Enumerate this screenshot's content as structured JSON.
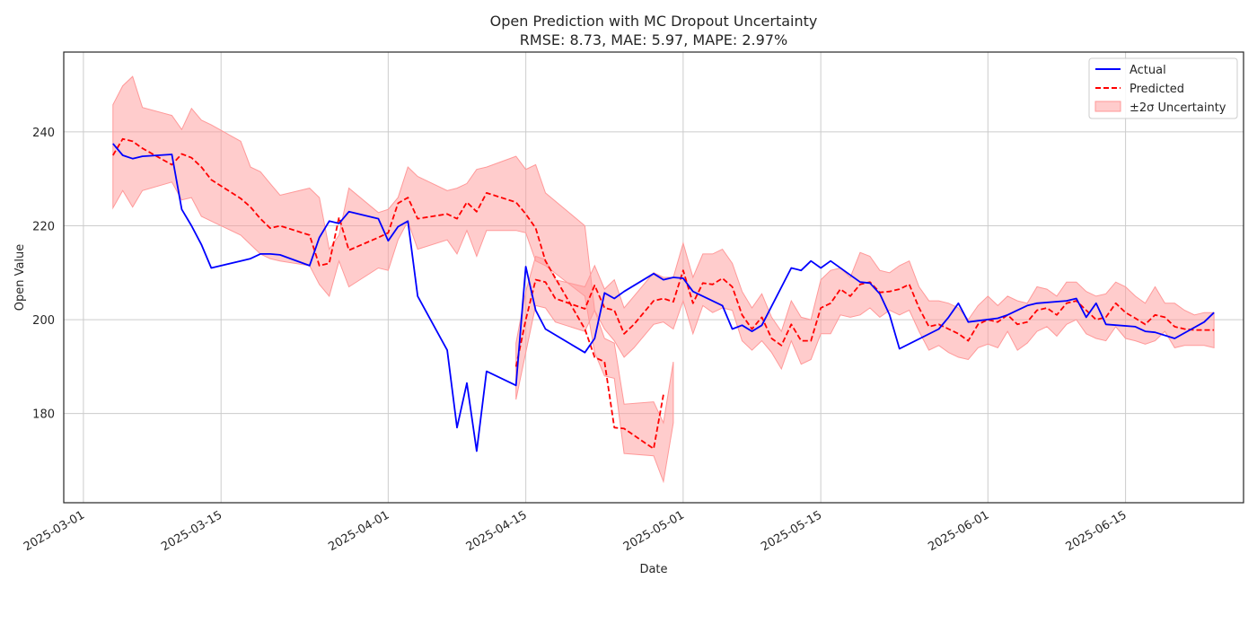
{
  "chart_data": {
    "type": "line",
    "title": "Open Prediction with MC Dropout Uncertainty",
    "subtitle": "RMSE: 8.73, MAE: 5.97, MAPE: 2.97%",
    "xlabel": "Date",
    "ylabel": "Open Value",
    "x_axis_type": "date",
    "xlim": [
      "2025-02-27",
      "2025-06-27"
    ],
    "ylim": [
      161,
      257
    ],
    "x_ticks": [
      "2025-03-01",
      "2025-03-15",
      "2025-04-01",
      "2025-04-15",
      "2025-05-01",
      "2025-05-15",
      "2025-06-01",
      "2025-06-15"
    ],
    "y_ticks": [
      180,
      200,
      220,
      240
    ],
    "grid": true,
    "legend_position": "top-right",
    "colors": {
      "actual": "#0000ff",
      "predicted": "#ff0000",
      "band": "#ff9999"
    },
    "series": [
      {
        "name": "Actual",
        "style": "solid",
        "points": [
          [
            "2025-03-04",
            237.5
          ],
          [
            "2025-03-05",
            235.0
          ],
          [
            "2025-03-06",
            234.3
          ],
          [
            "2025-03-07",
            234.8
          ],
          [
            "2025-03-10",
            235.2
          ],
          [
            "2025-03-11",
            223.5
          ],
          [
            "2025-03-12",
            220.0
          ],
          [
            "2025-03-13",
            216.0
          ],
          [
            "2025-03-14",
            211.0
          ],
          [
            "2025-03-17",
            212.5
          ],
          [
            "2025-03-18",
            213.0
          ],
          [
            "2025-03-19",
            214.0
          ],
          [
            "2025-03-20",
            214.0
          ],
          [
            "2025-03-21",
            213.8
          ],
          [
            "2025-03-24",
            211.5
          ],
          [
            "2025-03-25",
            217.5
          ],
          [
            "2025-03-26",
            221.0
          ],
          [
            "2025-03-27",
            220.5
          ],
          [
            "2025-03-28",
            223.0
          ],
          [
            "2025-03-31",
            221.5
          ],
          [
            "2025-04-01",
            216.8
          ],
          [
            "2025-04-02",
            219.8
          ],
          [
            "2025-04-03",
            221.0
          ],
          [
            "2025-04-04",
            205.0
          ],
          [
            "2025-04-07",
            193.5
          ],
          [
            "2025-04-08",
            177.0
          ],
          [
            "2025-04-09",
            186.5
          ],
          [
            "2025-04-10",
            172.0
          ],
          [
            "2025-04-11",
            189.0
          ],
          [
            "2025-04-14",
            186.0
          ],
          [
            "2025-04-15",
            211.3
          ],
          [
            "2025-04-16",
            202.0
          ],
          [
            "2025-04-17",
            198.0
          ],
          [
            "2025-04-21",
            193.0
          ],
          [
            "2025-04-22",
            196.0
          ],
          [
            "2025-04-23",
            205.7
          ],
          [
            "2025-04-24",
            204.5
          ],
          [
            "2025-04-25",
            206.0
          ],
          [
            "2025-04-28",
            209.8
          ],
          [
            "2025-04-29",
            208.5
          ],
          [
            "2025-04-30",
            209.0
          ],
          [
            "2025-05-01",
            208.8
          ],
          [
            "2025-05-02",
            206.0
          ],
          [
            "2025-05-05",
            203.0
          ],
          [
            "2025-05-06",
            198.0
          ],
          [
            "2025-05-07",
            198.8
          ],
          [
            "2025-05-08",
            197.5
          ],
          [
            "2025-05-09",
            198.8
          ],
          [
            "2025-05-12",
            211.0
          ],
          [
            "2025-05-13",
            210.5
          ],
          [
            "2025-05-14",
            212.5
          ],
          [
            "2025-05-15",
            211.0
          ],
          [
            "2025-05-16",
            212.5
          ],
          [
            "2025-05-19",
            208.0
          ],
          [
            "2025-05-20",
            207.8
          ],
          [
            "2025-05-21",
            205.5
          ],
          [
            "2025-05-22",
            201.0
          ],
          [
            "2025-05-23",
            193.8
          ],
          [
            "2025-05-27",
            198.0
          ],
          [
            "2025-05-28",
            200.5
          ],
          [
            "2025-05-29",
            203.5
          ],
          [
            "2025-05-30",
            199.5
          ],
          [
            "2025-06-02",
            200.3
          ],
          [
            "2025-06-03",
            201.0
          ],
          [
            "2025-06-04",
            202.0
          ],
          [
            "2025-06-05",
            203.0
          ],
          [
            "2025-06-06",
            203.5
          ],
          [
            "2025-06-09",
            204.0
          ],
          [
            "2025-06-10",
            204.5
          ],
          [
            "2025-06-11",
            200.5
          ],
          [
            "2025-06-12",
            203.5
          ],
          [
            "2025-06-13",
            199.0
          ],
          [
            "2025-06-16",
            198.5
          ],
          [
            "2025-06-17",
            197.5
          ],
          [
            "2025-06-18",
            197.3
          ],
          [
            "2025-06-20",
            196.0
          ],
          [
            "2025-06-23",
            199.5
          ],
          [
            "2025-06-24",
            201.5
          ]
        ]
      },
      {
        "name": "Predicted",
        "style": "dashed",
        "points": [
          [
            "2025-03-04",
            235.0
          ],
          [
            "2025-03-05",
            238.5
          ],
          [
            "2025-03-06",
            238.0
          ],
          [
            "2025-03-07",
            236.5
          ],
          [
            "2025-03-10",
            233.0
          ],
          [
            "2025-03-11",
            235.3
          ],
          [
            "2025-03-12",
            234.5
          ],
          [
            "2025-03-13",
            232.5
          ],
          [
            "2025-03-14",
            229.8
          ],
          [
            "2025-03-17",
            225.8
          ],
          [
            "2025-03-18",
            224.0
          ],
          [
            "2025-03-19",
            221.5
          ],
          [
            "2025-03-20",
            219.5
          ],
          [
            "2025-03-21",
            220.0
          ],
          [
            "2025-03-24",
            218.0
          ],
          [
            "2025-03-25",
            211.5
          ],
          [
            "2025-03-26",
            212.0
          ],
          [
            "2025-03-27",
            221.8
          ],
          [
            "2025-03-28",
            214.8
          ],
          [
            "2025-03-31",
            217.5
          ],
          [
            "2025-04-01",
            218.5
          ],
          [
            "2025-04-02",
            224.8
          ],
          [
            "2025-04-03",
            226.0
          ],
          [
            "2025-04-04",
            221.5
          ],
          [
            "2025-04-07",
            222.5
          ],
          [
            "2025-04-08",
            221.5
          ],
          [
            "2025-04-09",
            225.0
          ],
          [
            "2025-04-10",
            223.0
          ],
          [
            "2025-04-11",
            227.0
          ],
          [
            "2025-04-14",
            225.0
          ],
          [
            "2025-04-15",
            222.5
          ],
          [
            "2025-04-16",
            219.5
          ],
          [
            "2025-04-17",
            212.5
          ],
          [
            "2025-04-21",
            198.0
          ],
          [
            "2025-04-22",
            192.0
          ],
          [
            "2025-04-23",
            191.0
          ],
          [
            "2025-04-24",
            177.0
          ],
          [
            "2025-04-25",
            176.8
          ],
          [
            "2025-04-28",
            172.5
          ],
          [
            "2025-04-29",
            184.0
          ]
        ]
      },
      {
        "name": "±2σ Uncertainty",
        "style": "band",
        "upper": [
          245.8,
          249.8,
          251.8,
          245.2,
          243.5,
          240.5,
          245.0,
          242.5,
          241.5,
          238.0,
          232.5,
          231.5,
          229.0,
          226.5,
          228.0,
          226.0,
          215.0,
          218.0,
          228.0,
          222.8,
          223.5,
          226.0,
          232.5,
          230.5,
          227.5,
          228.0,
          229.0,
          232.0,
          232.5,
          234.8,
          232.0,
          233.0,
          227.0,
          220.0,
          202.0,
          196.0,
          195.0,
          182.0,
          182.5,
          178.0,
          191.0
        ],
        "lower": [
          223.8,
          227.5,
          224.0,
          227.5,
          229.3,
          225.5,
          226.0,
          222.0,
          221.0,
          218.0,
          216.0,
          214.0,
          213.0,
          212.5,
          211.5,
          207.5,
          205.0,
          212.5,
          207.0,
          211.0,
          210.5,
          217.0,
          221.0,
          215.0,
          217.0,
          214.0,
          219.0,
          213.5,
          219.0,
          219.0,
          218.5,
          212.5,
          211.5,
          205.0,
          193.0,
          188.0,
          187.5,
          171.5,
          171.0,
          165.5,
          178.0
        ]
      }
    ],
    "band_dates": [
      "2025-03-04",
      "2025-03-05",
      "2025-03-06",
      "2025-03-07",
      "2025-03-10",
      "2025-03-11",
      "2025-03-12",
      "2025-03-13",
      "2025-03-14",
      "2025-03-17",
      "2025-03-18",
      "2025-03-19",
      "2025-03-20",
      "2025-03-21",
      "2025-03-24",
      "2025-03-25",
      "2025-03-26",
      "2025-03-27",
      "2025-03-28",
      "2025-03-31",
      "2025-04-01",
      "2025-04-02",
      "2025-04-03",
      "2025-04-04",
      "2025-04-07",
      "2025-04-08",
      "2025-04-09",
      "2025-04-10",
      "2025-04-11",
      "2025-04-14",
      "2025-04-15",
      "2025-04-16",
      "2025-04-17",
      "2025-04-21",
      "2025-04-22",
      "2025-04-23",
      "2025-04-24",
      "2025-04-25",
      "2025-04-28",
      "2025-04-29",
      "2025-04-30"
    ],
    "predicted_tail": {
      "points": [
        [
          "2025-04-14",
          190.0
        ],
        [
          "2025-04-15",
          200.0
        ],
        [
          "2025-04-16",
          208.5
        ],
        [
          "2025-04-17",
          208.0
        ],
        [
          "2025-04-18",
          204.5
        ],
        [
          "2025-04-21",
          202.3
        ],
        [
          "2025-04-22",
          207.3
        ],
        [
          "2025-04-23",
          202.5
        ],
        [
          "2025-04-24",
          202.0
        ],
        [
          "2025-04-25",
          197.0
        ],
        [
          "2025-04-26",
          199.0
        ],
        [
          "2025-04-28",
          204.0
        ],
        [
          "2025-04-29",
          204.5
        ],
        [
          "2025-04-30",
          203.8
        ],
        [
          "2025-05-01",
          210.5
        ],
        [
          "2025-05-02",
          203.5
        ],
        [
          "2025-05-03",
          207.8
        ],
        [
          "2025-05-04",
          207.5
        ],
        [
          "2025-05-05",
          208.8
        ],
        [
          "2025-05-06",
          207.0
        ],
        [
          "2025-05-07",
          201.0
        ],
        [
          "2025-05-08",
          198.0
        ],
        [
          "2025-05-09",
          200.5
        ],
        [
          "2025-05-10",
          196.0
        ],
        [
          "2025-05-11",
          194.5
        ],
        [
          "2025-05-12",
          199.0
        ],
        [
          "2025-05-13",
          195.5
        ],
        [
          "2025-05-14",
          195.5
        ],
        [
          "2025-05-15",
          202.5
        ],
        [
          "2025-05-16",
          203.5
        ],
        [
          "2025-05-17",
          206.5
        ],
        [
          "2025-05-18",
          205.0
        ],
        [
          "2025-05-19",
          207.5
        ],
        [
          "2025-05-20",
          208.0
        ],
        [
          "2025-05-21",
          205.8
        ],
        [
          "2025-05-22",
          206.0
        ],
        [
          "2025-05-23",
          206.5
        ],
        [
          "2025-05-24",
          207.5
        ],
        [
          "2025-05-25",
          202.5
        ],
        [
          "2025-05-26",
          198.5
        ],
        [
          "2025-05-27",
          199.0
        ],
        [
          "2025-05-28",
          198.0
        ],
        [
          "2025-05-29",
          197.0
        ],
        [
          "2025-05-30",
          195.5
        ],
        [
          "2025-05-31",
          199.0
        ],
        [
          "2025-06-01",
          200.0
        ],
        [
          "2025-06-02",
          199.5
        ],
        [
          "2025-06-03",
          201.0
        ],
        [
          "2025-06-04",
          199.0
        ],
        [
          "2025-06-05",
          199.5
        ],
        [
          "2025-06-06",
          202.0
        ],
        [
          "2025-06-07",
          202.5
        ],
        [
          "2025-06-08",
          201.0
        ],
        [
          "2025-06-09",
          203.5
        ],
        [
          "2025-06-10",
          204.0
        ],
        [
          "2025-06-11",
          202.0
        ],
        [
          "2025-06-12",
          200.0
        ],
        [
          "2025-06-13",
          200.5
        ],
        [
          "2025-06-14",
          203.5
        ],
        [
          "2025-06-15",
          201.5
        ],
        [
          "2025-06-16",
          200.3
        ],
        [
          "2025-06-17",
          199.0
        ],
        [
          "2025-06-18",
          201.0
        ],
        [
          "2025-06-19",
          200.5
        ],
        [
          "2025-06-20",
          198.5
        ],
        [
          "2025-06-21",
          198.0
        ],
        [
          "2025-06-22",
          197.8
        ],
        [
          "2025-06-23",
          197.8
        ],
        [
          "2025-06-24",
          197.8
        ]
      ],
      "upper": [
        195.0,
        206.0,
        213.5,
        212.8,
        208.5,
        207.0,
        211.5,
        206.5,
        208.5,
        202.5,
        205.0,
        210.0,
        209.0,
        209.0,
        216.3,
        209.0,
        214.0,
        214.0,
        215.0,
        212.0,
        206.0,
        202.5,
        205.5,
        200.5,
        197.5,
        204.0,
        200.5,
        200.0,
        208.5,
        210.5,
        211.0,
        209.0,
        214.3,
        213.5,
        210.5,
        210.0,
        211.5,
        212.5,
        207.0,
        204.0,
        204.0,
        203.5,
        202.5,
        200.0,
        203.0,
        205.0,
        203.0,
        205.0,
        204.0,
        203.5,
        207.0,
        206.5,
        205.0,
        208.0,
        208.0,
        206.0,
        205.0,
        205.5,
        208.0,
        207.0,
        205.0,
        203.5,
        207.0,
        203.5,
        203.5,
        202.0,
        201.0,
        201.5,
        201.5
      ],
      "lower": [
        183.0,
        193.0,
        203.0,
        202.5,
        199.5,
        197.5,
        202.0,
        198.0,
        195.5,
        192.0,
        194.0,
        199.0,
        199.5,
        198.0,
        204.0,
        197.0,
        203.0,
        201.5,
        202.5,
        202.0,
        195.5,
        193.5,
        195.5,
        193.0,
        189.5,
        195.5,
        190.5,
        191.5,
        197.0,
        197.0,
        201.0,
        200.5,
        201.0,
        202.5,
        200.5,
        202.0,
        201.0,
        202.0,
        197.5,
        193.5,
        194.5,
        193.0,
        192.0,
        191.5,
        194.0,
        194.8,
        194.0,
        197.5,
        193.5,
        195.0,
        197.5,
        198.5,
        196.5,
        199.0,
        200.0,
        197.0,
        196.0,
        195.5,
        198.5,
        196.0,
        195.5,
        194.8,
        195.5,
        197.5,
        194.0,
        194.5,
        194.5,
        194.5,
        194.0
      ]
    },
    "legend": [
      "Actual",
      "Predicted",
      "±2σ Uncertainty"
    ]
  }
}
